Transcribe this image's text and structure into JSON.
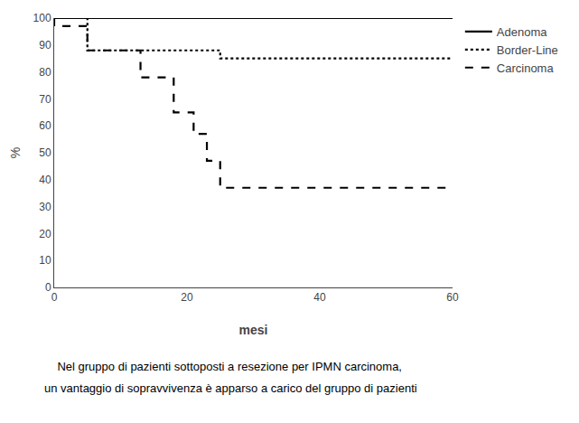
{
  "chart_data": {
    "type": "line",
    "x_label": "mesi",
    "y_label": "%",
    "series": [
      {
        "name": "Adenoma",
        "color": "#000000",
        "line_style": "solid",
        "x": [
          0,
          25,
          60
        ],
        "values": [
          100,
          100,
          100
        ]
      },
      {
        "name": "Border-Line",
        "color": "#000000",
        "line_style": "dot",
        "x": [
          0,
          0,
          5,
          5,
          25,
          25,
          60
        ],
        "values": [
          100,
          100,
          100,
          88,
          88,
          85,
          85
        ]
      },
      {
        "name": "Carcinoma",
        "color": "#000000",
        "line_style": "dash",
        "x": [
          0,
          0,
          5,
          5,
          13,
          13,
          18,
          18,
          21,
          21,
          23,
          23,
          25,
          25,
          28,
          28,
          60
        ],
        "values": [
          100,
          97,
          97,
          88,
          88,
          78,
          78,
          65,
          65,
          57,
          57,
          47,
          47,
          37,
          37,
          37,
          37
        ]
      }
    ],
    "xlim": [
      0,
      60
    ],
    "ylim": [
      0,
      100
    ],
    "xticks": [
      0,
      20,
      40,
      60
    ],
    "yticks": [
      0,
      10,
      20,
      30,
      40,
      50,
      60,
      70,
      80,
      90,
      100
    ],
    "grid": false,
    "legend": "right",
    "annotations": [
      "    Nel gruppo di pazienti sottoposti a resezione per IPMN carcinoma,",
      "un vantaggio di sopravvivenza è apparso a carico del gruppo di pazienti"
    ]
  }
}
